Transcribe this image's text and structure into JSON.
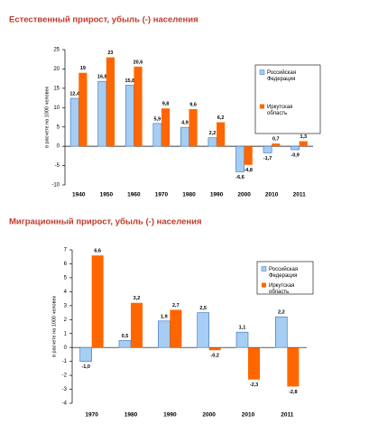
{
  "chart_data": [
    {
      "type": "bar",
      "title": "Естественный прирост, убыль (-) населения",
      "ylabel": "в расчете на 1000 человек",
      "categories": [
        "1940",
        "1950",
        "1960",
        "1970",
        "1980",
        "1990",
        "2000",
        "2010",
        "2011"
      ],
      "series": [
        {
          "name": "Российская Федерация",
          "color": "#a6cdf2",
          "values": [
            12.4,
            16.8,
            15.8,
            5.9,
            4.9,
            2.2,
            -6.6,
            -1.7,
            -0.9
          ],
          "value_labels": [
            "12,4",
            "16,8",
            "15,8",
            "5,9",
            "4,9",
            "2,2",
            "-6,6",
            "-1,7",
            "-0,9"
          ]
        },
        {
          "name": "Иркутская область",
          "color": "#ff6600",
          "values": [
            19,
            23,
            20.6,
            9.8,
            9.6,
            6.2,
            -4.8,
            0.7,
            1.3
          ],
          "value_labels": [
            "19",
            "23",
            "20,6",
            "9,8",
            "9,6",
            "6,2",
            "-4,8",
            "0,7",
            "1,3"
          ]
        }
      ],
      "ylim": [
        -10,
        25
      ],
      "yticks": [
        -10,
        -5,
        0,
        5,
        10,
        15,
        20,
        25
      ],
      "grid": false,
      "legend": "right"
    },
    {
      "type": "bar",
      "title": "Миграционный прирост, убыль (-) населения",
      "ylabel": "в расчете на 1000 человек",
      "categories": [
        "1970",
        "1980",
        "1990",
        "2000",
        "2010",
        "2011"
      ],
      "series": [
        {
          "name": "Российская Федерация",
          "color": "#a6cdf2",
          "values": [
            -1.0,
            0.5,
            1.9,
            2.5,
            1.1,
            2.2
          ],
          "value_labels": [
            "-1,0",
            "0,5",
            "1,9",
            "2,5",
            "1,1",
            "2,2"
          ]
        },
        {
          "name": "Иркутская область",
          "color": "#ff6600",
          "values": [
            6.6,
            3.2,
            2.7,
            -0.2,
            -2.3,
            -2.8
          ],
          "value_labels": [
            "6,6",
            "3,2",
            "2,7",
            "-0,2",
            "-2,3",
            "-2,8"
          ]
        }
      ],
      "ylim": [
        -4,
        7
      ],
      "yticks": [
        -4,
        -3,
        -2,
        -1,
        0,
        1,
        2,
        3,
        4,
        5,
        6,
        7
      ],
      "grid": false,
      "legend": "right"
    }
  ]
}
